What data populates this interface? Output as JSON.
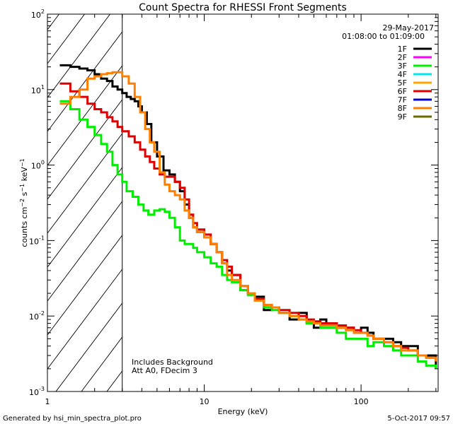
{
  "chart_data": {
    "type": "line",
    "title": "Count Spectra for RHESSI Front Segments",
    "xlabel": "Energy (keV)",
    "ylabel": "counts cm^-2 s^-1 keV^-1",
    "xscale": "log",
    "yscale": "log",
    "xlim": [
      1,
      310
    ],
    "ylim": [
      0.001,
      100
    ],
    "x_ticks": [
      {
        "value": 1,
        "label": "1"
      },
      {
        "value": 10,
        "label": "10"
      },
      {
        "value": 100,
        "label": "100"
      }
    ],
    "y_ticks": [
      {
        "value": 0.001,
        "base": "10",
        "exp": "-3"
      },
      {
        "value": 0.01,
        "base": "10",
        "exp": "-2"
      },
      {
        "value": 0.1,
        "base": "10",
        "exp": "-1"
      },
      {
        "value": 1,
        "base": "10",
        "exp": "0"
      },
      {
        "value": 10,
        "base": "10",
        "exp": "1"
      },
      {
        "value": 100,
        "base": "10",
        "exp": "2"
      }
    ],
    "hatched_region": {
      "x_from": 1,
      "x_to": 3
    },
    "date": "29-May-2017",
    "time_range": "01:08:00 to 01:09:00",
    "annotations": [
      "Includes Background",
      "Att A0, FDecim 3"
    ],
    "legend": [
      {
        "label": "1F",
        "color": "#000000"
      },
      {
        "label": "2F",
        "color": "#ff00ff"
      },
      {
        "label": "3F",
        "color": "#00ee00"
      },
      {
        "label": "4F",
        "color": "#00e5ee"
      },
      {
        "label": "5F",
        "color": "#ffa500"
      },
      {
        "label": "6F",
        "color": "#dd0000"
      },
      {
        "label": "7F",
        "color": "#0000cc"
      },
      {
        "label": "8F",
        "color": "#ff8000"
      },
      {
        "label": "9F",
        "color": "#6b6b00"
      }
    ],
    "series": [
      {
        "name": "1F",
        "color": "#000000",
        "x": [
          1.2,
          1.4,
          1.6,
          1.8,
          2.0,
          2.2,
          2.4,
          2.6,
          2.8,
          3.0,
          3.2,
          3.4,
          3.6,
          3.8,
          4.0,
          4.3,
          4.6,
          5.0,
          5.5,
          6.0,
          6.5,
          7.0,
          7.5,
          8.0,
          8.5,
          9.0,
          10,
          11,
          12,
          13,
          14,
          15,
          17,
          19,
          21,
          24,
          27,
          30,
          35,
          40,
          45,
          50,
          55,
          60,
          70,
          80,
          90,
          100,
          110,
          120,
          140,
          160,
          180,
          200,
          230,
          260,
          300
        ],
        "y": [
          21,
          20,
          19,
          18,
          16,
          14,
          13,
          11,
          10,
          9,
          8,
          7.5,
          7,
          6,
          5,
          3.5,
          2,
          1.3,
          0.85,
          0.75,
          0.6,
          0.45,
          0.3,
          0.2,
          0.15,
          0.13,
          0.11,
          0.09,
          0.07,
          0.05,
          0.04,
          0.035,
          0.022,
          0.02,
          0.018,
          0.012,
          0.013,
          0.011,
          0.009,
          0.011,
          0.008,
          0.007,
          0.009,
          0.008,
          0.007,
          0.007,
          0.006,
          0.007,
          0.006,
          0.005,
          0.005,
          0.0045,
          0.004,
          0.004,
          0.003,
          0.003,
          0.002
        ]
      },
      {
        "name": "3F",
        "color": "#00ee00",
        "x": [
          1.2,
          1.4,
          1.6,
          1.8,
          2.0,
          2.2,
          2.4,
          2.6,
          2.8,
          3.0,
          3.2,
          3.5,
          3.8,
          4.1,
          4.4,
          4.8,
          5.2,
          5.6,
          6.0,
          6.5,
          7.0,
          7.5,
          8.0,
          8.5,
          9.0,
          10,
          11,
          12,
          13,
          14,
          15,
          17,
          19,
          21,
          24,
          27,
          30,
          35,
          40,
          45,
          50,
          55,
          60,
          70,
          80,
          90,
          100,
          110,
          120,
          140,
          160,
          180,
          200,
          230,
          260,
          300
        ],
        "y": [
          7,
          5.5,
          4,
          3.2,
          2.5,
          1.9,
          1.5,
          1,
          0.75,
          0.6,
          0.45,
          0.38,
          0.3,
          0.25,
          0.22,
          0.25,
          0.26,
          0.24,
          0.2,
          0.15,
          0.1,
          0.09,
          0.09,
          0.08,
          0.07,
          0.06,
          0.05,
          0.045,
          0.035,
          0.03,
          0.028,
          0.022,
          0.019,
          0.017,
          0.013,
          0.012,
          0.011,
          0.01,
          0.009,
          0.008,
          0.008,
          0.007,
          0.007,
          0.006,
          0.005,
          0.005,
          0.005,
          0.004,
          0.0045,
          0.004,
          0.0035,
          0.003,
          0.003,
          0.0025,
          0.0022,
          0.002
        ]
      },
      {
        "name": "6F",
        "color": "#dd0000",
        "x": [
          1.2,
          1.4,
          1.6,
          1.8,
          2.0,
          2.2,
          2.4,
          2.6,
          2.8,
          3.0,
          3.3,
          3.6,
          3.9,
          4.2,
          4.5,
          4.8,
          5.2,
          5.6,
          6.0,
          6.5,
          7.0,
          7.5,
          8.0,
          8.5,
          9.0,
          10,
          11,
          12,
          13,
          14,
          15,
          17,
          19,
          21,
          24,
          27,
          30,
          35,
          40,
          45,
          50,
          55,
          60,
          70,
          80,
          90,
          100,
          110,
          120,
          140,
          160,
          180,
          200,
          230,
          260,
          300
        ],
        "y": [
          12,
          9.5,
          8,
          6.5,
          5.5,
          5,
          4.3,
          3.8,
          3.2,
          2.8,
          2.4,
          2,
          1.6,
          1.3,
          1.1,
          0.9,
          0.75,
          0.7,
          0.7,
          0.6,
          0.5,
          0.35,
          0.22,
          0.17,
          0.14,
          0.12,
          0.09,
          0.07,
          0.055,
          0.045,
          0.035,
          0.025,
          0.02,
          0.017,
          0.014,
          0.013,
          0.012,
          0.011,
          0.01,
          0.009,
          0.0085,
          0.008,
          0.008,
          0.0075,
          0.007,
          0.0065,
          0.006,
          0.0055,
          0.005,
          0.0045,
          0.004,
          0.0038,
          0.0035,
          0.003,
          0.0028,
          0.0025
        ]
      },
      {
        "name": "8F",
        "color": "#ff8000",
        "x": [
          1.2,
          1.4,
          1.6,
          1.8,
          2.0,
          2.2,
          2.4,
          2.6,
          2.8,
          3.0,
          3.3,
          3.6,
          3.9,
          4.2,
          4.5,
          4.8,
          5.2,
          5.6,
          6.0,
          6.5,
          7.0,
          7.5,
          8.0,
          8.5,
          9.0,
          10,
          11,
          12,
          13,
          14,
          15,
          17,
          19,
          21,
          24,
          27,
          30,
          35,
          40,
          45,
          50,
          55,
          60,
          70,
          80,
          90,
          100,
          110,
          120,
          140,
          160,
          180,
          200,
          230,
          260,
          300
        ],
        "y": [
          6.5,
          8,
          10,
          14,
          15,
          16,
          16.5,
          17,
          17,
          15,
          12,
          8,
          5,
          3,
          2,
          1.5,
          0.8,
          0.55,
          0.45,
          0.4,
          0.35,
          0.25,
          0.2,
          0.15,
          0.13,
          0.11,
          0.09,
          0.07,
          0.05,
          0.035,
          0.03,
          0.025,
          0.02,
          0.016,
          0.014,
          0.013,
          0.011,
          0.01,
          0.009,
          0.0085,
          0.008,
          0.0075,
          0.0075,
          0.007,
          0.0065,
          0.006,
          0.006,
          0.0055,
          0.005,
          0.0045,
          0.004,
          0.0035,
          0.0035,
          0.003,
          0.0028,
          0.0025
        ]
      }
    ]
  },
  "footer": {
    "generated_by": "Generated by hsi_min_spectra_plot.pro",
    "timestamp": "5-Oct-2017 09:57"
  }
}
